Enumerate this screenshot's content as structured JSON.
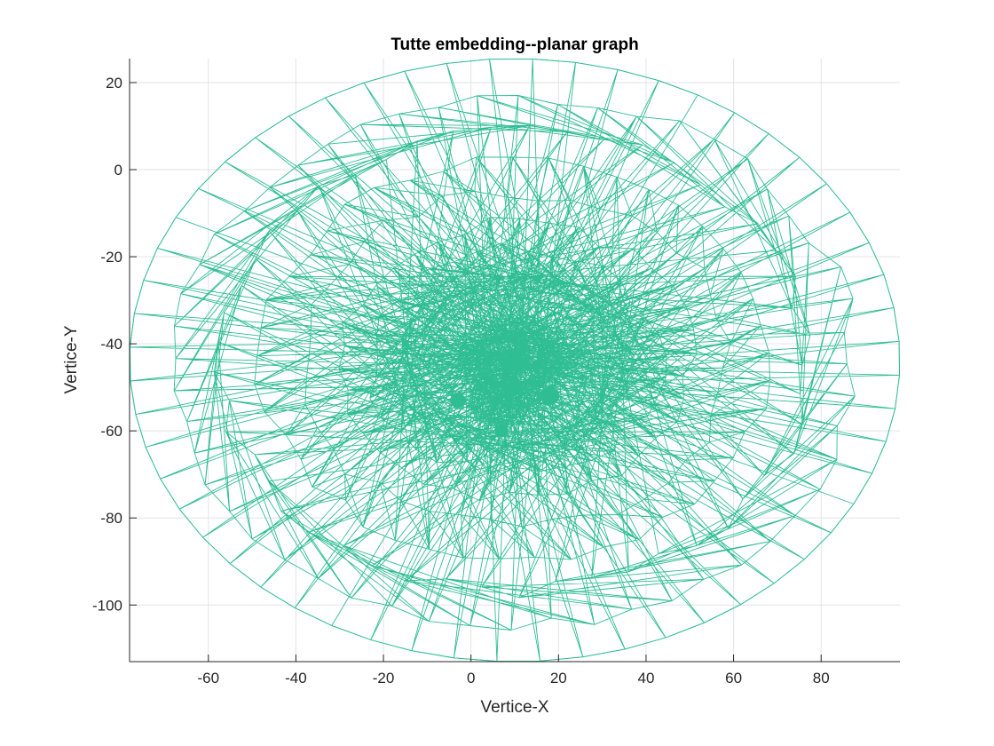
{
  "chart_data": {
    "type": "mesh",
    "title": "Tutte embedding--planar graph",
    "xlabel": "Vertice-X",
    "ylabel": "Vertice-Y",
    "xlim": [
      -78,
      98
    ],
    "ylim": [
      -113,
      25.5
    ],
    "xticks": [
      -60,
      -40,
      -20,
      0,
      20,
      40,
      60,
      80
    ],
    "yticks": [
      20,
      0,
      -20,
      -40,
      -60,
      -80,
      -100
    ],
    "xtick_labels": [
      "-60",
      "-40",
      "-20",
      "0",
      "20",
      "40",
      "60",
      "80"
    ],
    "ytick_labels": [
      "20",
      "0",
      "-20",
      "-40",
      "-60",
      "-80",
      "-100"
    ],
    "grid": true,
    "box": false,
    "edge_color": "#2fbd94",
    "boundary": {
      "center": [
        10,
        -44
      ],
      "radius_x": 88,
      "radius_top": 69.5,
      "radius_bottom": 69,
      "shape": "oval"
    },
    "dense_clusters": [
      {
        "x": 6,
        "y": -53,
        "radius": 6,
        "label": "center"
      },
      {
        "x": -3,
        "y": -53,
        "radius": 1.6,
        "label": "left"
      },
      {
        "x": 18,
        "y": -52,
        "radius": 2,
        "label": "right"
      },
      {
        "x": 7,
        "y": -60,
        "radius": 1.4,
        "label": "bottom"
      }
    ]
  }
}
